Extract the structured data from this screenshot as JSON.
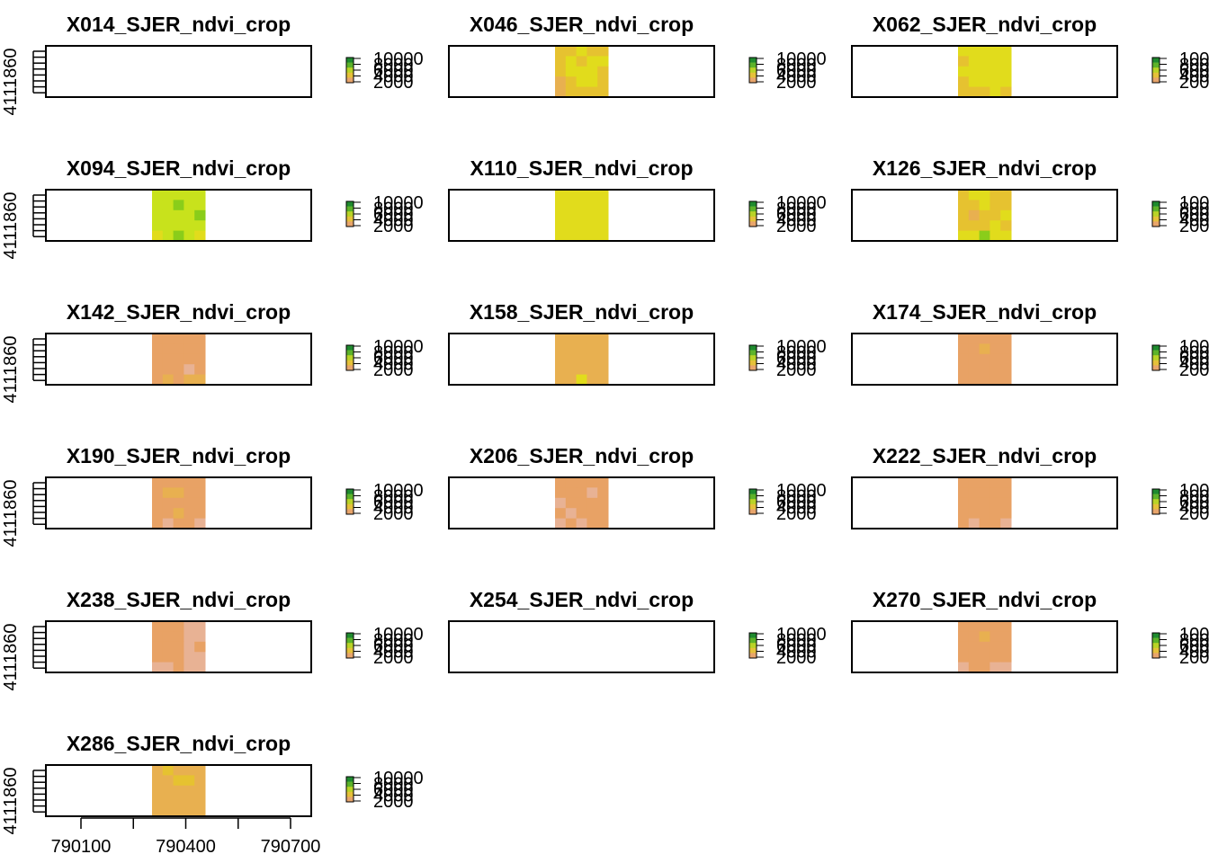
{
  "chart_data": {
    "type": "heatmap",
    "panels": [
      {
        "title": "X014_SJER_ndvi_crop",
        "color_classes": [
          [
            0,
            0,
            0,
            0,
            0
          ],
          [
            0,
            0,
            0,
            0,
            0
          ],
          [
            0,
            0,
            0,
            0,
            0
          ],
          [
            0,
            0,
            0,
            0,
            0
          ],
          [
            0,
            0,
            0,
            0,
            0
          ]
        ],
        "has_data": false
      },
      {
        "title": "X046_SJER_ndvi_crop",
        "color_classes": [
          [
            4,
            4,
            5,
            4,
            4
          ],
          [
            4,
            5,
            4,
            5,
            5
          ],
          [
            4,
            5,
            5,
            5,
            4
          ],
          [
            3,
            4,
            5,
            5,
            4
          ],
          [
            3,
            4,
            4,
            4,
            4
          ]
        ],
        "has_data": true
      },
      {
        "title": "X062_SJER_ndvi_crop",
        "color_classes": [
          [
            5,
            5,
            5,
            5,
            5
          ],
          [
            4,
            5,
            5,
            5,
            5
          ],
          [
            5,
            5,
            5,
            5,
            5
          ],
          [
            4,
            5,
            5,
            5,
            5
          ],
          [
            4,
            4,
            4,
            5,
            4
          ]
        ],
        "has_data": true
      },
      {
        "title": "X094_SJER_ndvi_crop",
        "color_classes": [
          [
            6,
            6,
            6,
            6,
            6
          ],
          [
            6,
            6,
            7,
            6,
            6
          ],
          [
            6,
            6,
            6,
            6,
            7
          ],
          [
            6,
            6,
            6,
            6,
            6
          ],
          [
            5,
            6,
            7,
            6,
            5
          ]
        ],
        "has_data": true
      },
      {
        "title": "X110_SJER_ndvi_crop",
        "color_classes": [
          [
            5,
            5,
            5,
            5,
            5
          ],
          [
            5,
            5,
            5,
            5,
            5
          ],
          [
            5,
            5,
            5,
            5,
            5
          ],
          [
            5,
            5,
            5,
            5,
            5
          ],
          [
            5,
            5,
            5,
            5,
            5
          ]
        ],
        "has_data": true
      },
      {
        "title": "X126_SJER_ndvi_crop",
        "color_classes": [
          [
            4,
            5,
            5,
            4,
            4
          ],
          [
            4,
            4,
            5,
            4,
            4
          ],
          [
            4,
            3,
            4,
            4,
            5
          ],
          [
            4,
            4,
            4,
            5,
            4
          ],
          [
            5,
            5,
            7,
            5,
            5
          ]
        ],
        "has_data": true
      },
      {
        "title": "X142_SJER_ndvi_crop",
        "color_classes": [
          [
            2,
            2,
            2,
            2,
            2
          ],
          [
            2,
            2,
            2,
            2,
            2
          ],
          [
            2,
            2,
            2,
            2,
            2
          ],
          [
            2,
            2,
            2,
            1,
            2
          ],
          [
            2,
            3,
            2,
            3,
            3
          ]
        ],
        "has_data": true
      },
      {
        "title": "X158_SJER_ndvi_crop",
        "color_classes": [
          [
            3,
            3,
            3,
            3,
            3
          ],
          [
            3,
            3,
            3,
            3,
            3
          ],
          [
            3,
            3,
            3,
            3,
            3
          ],
          [
            3,
            3,
            3,
            3,
            3
          ],
          [
            3,
            3,
            5,
            3,
            3
          ]
        ],
        "has_data": true
      },
      {
        "title": "X174_SJER_ndvi_crop",
        "color_classes": [
          [
            2,
            2,
            2,
            2,
            2
          ],
          [
            2,
            2,
            3,
            2,
            2
          ],
          [
            2,
            2,
            2,
            2,
            2
          ],
          [
            2,
            2,
            2,
            2,
            2
          ],
          [
            2,
            2,
            2,
            2,
            2
          ]
        ],
        "has_data": true
      },
      {
        "title": "X190_SJER_ndvi_crop",
        "color_classes": [
          [
            2,
            2,
            2,
            2,
            2
          ],
          [
            2,
            3,
            3,
            2,
            2
          ],
          [
            2,
            2,
            2,
            2,
            2
          ],
          [
            2,
            2,
            3,
            2,
            2
          ],
          [
            2,
            1,
            2,
            2,
            1
          ]
        ],
        "has_data": true
      },
      {
        "title": "X206_SJER_ndvi_crop",
        "color_classes": [
          [
            2,
            2,
            2,
            2,
            2
          ],
          [
            2,
            2,
            2,
            1,
            2
          ],
          [
            1,
            2,
            2,
            2,
            2
          ],
          [
            2,
            1,
            2,
            2,
            2
          ],
          [
            1,
            2,
            1,
            2,
            2
          ]
        ],
        "has_data": true
      },
      {
        "title": "X222_SJER_ndvi_crop",
        "color_classes": [
          [
            2,
            2,
            2,
            2,
            2
          ],
          [
            2,
            2,
            2,
            2,
            2
          ],
          [
            2,
            2,
            2,
            2,
            2
          ],
          [
            2,
            2,
            2,
            2,
            2
          ],
          [
            2,
            1,
            2,
            2,
            1
          ]
        ],
        "has_data": true
      },
      {
        "title": "X238_SJER_ndvi_crop",
        "color_classes": [
          [
            2,
            2,
            2,
            1,
            1
          ],
          [
            2,
            2,
            2,
            1,
            1
          ],
          [
            2,
            2,
            2,
            1,
            2
          ],
          [
            2,
            2,
            2,
            1,
            1
          ],
          [
            1,
            1,
            2,
            1,
            1
          ]
        ],
        "has_data": true
      },
      {
        "title": "X254_SJER_ndvi_crop",
        "color_classes": [
          [
            0,
            0,
            0,
            0,
            0
          ],
          [
            0,
            0,
            0,
            0,
            0
          ],
          [
            0,
            0,
            0,
            0,
            0
          ],
          [
            0,
            0,
            0,
            0,
            0
          ],
          [
            0,
            0,
            0,
            0,
            0
          ]
        ],
        "has_data": false
      },
      {
        "title": "X270_SJER_ndvi_crop",
        "color_classes": [
          [
            2,
            2,
            2,
            2,
            2
          ],
          [
            2,
            2,
            3,
            2,
            2
          ],
          [
            2,
            2,
            2,
            2,
            2
          ],
          [
            2,
            2,
            2,
            2,
            2
          ],
          [
            1,
            2,
            2,
            1,
            1
          ]
        ],
        "has_data": true
      },
      {
        "title": "X286_SJER_ndvi_crop",
        "color_classes": [
          [
            3,
            4,
            3,
            3,
            3
          ],
          [
            3,
            3,
            4,
            4,
            3
          ],
          [
            3,
            3,
            3,
            3,
            3
          ],
          [
            3,
            3,
            3,
            3,
            3
          ],
          [
            3,
            3,
            3,
            3,
            3
          ]
        ],
        "has_data": true
      }
    ],
    "palette": [
      "#ffffff",
      "#e8b294",
      "#e8a265",
      "#e8b050",
      "#e6c230",
      "#e1dc1c",
      "#c8e21c",
      "#8acd1a"
    ],
    "ylabel_tick": "4111860",
    "x_ticks": [
      790100,
      790400,
      790700
    ],
    "x_minor_ticks": [
      790100,
      790150,
      790200,
      790250,
      790300,
      790350,
      790400,
      790450,
      790500,
      790550,
      790600,
      790650,
      790700
    ],
    "legend": {
      "labels": [
        "10000",
        "8000",
        "6000",
        "4000",
        "2000"
      ],
      "colors": [
        "#1f8a2e",
        "#5db32a",
        "#b9d327",
        "#e5c13a",
        "#e8a56b"
      ]
    },
    "grid": false
  }
}
